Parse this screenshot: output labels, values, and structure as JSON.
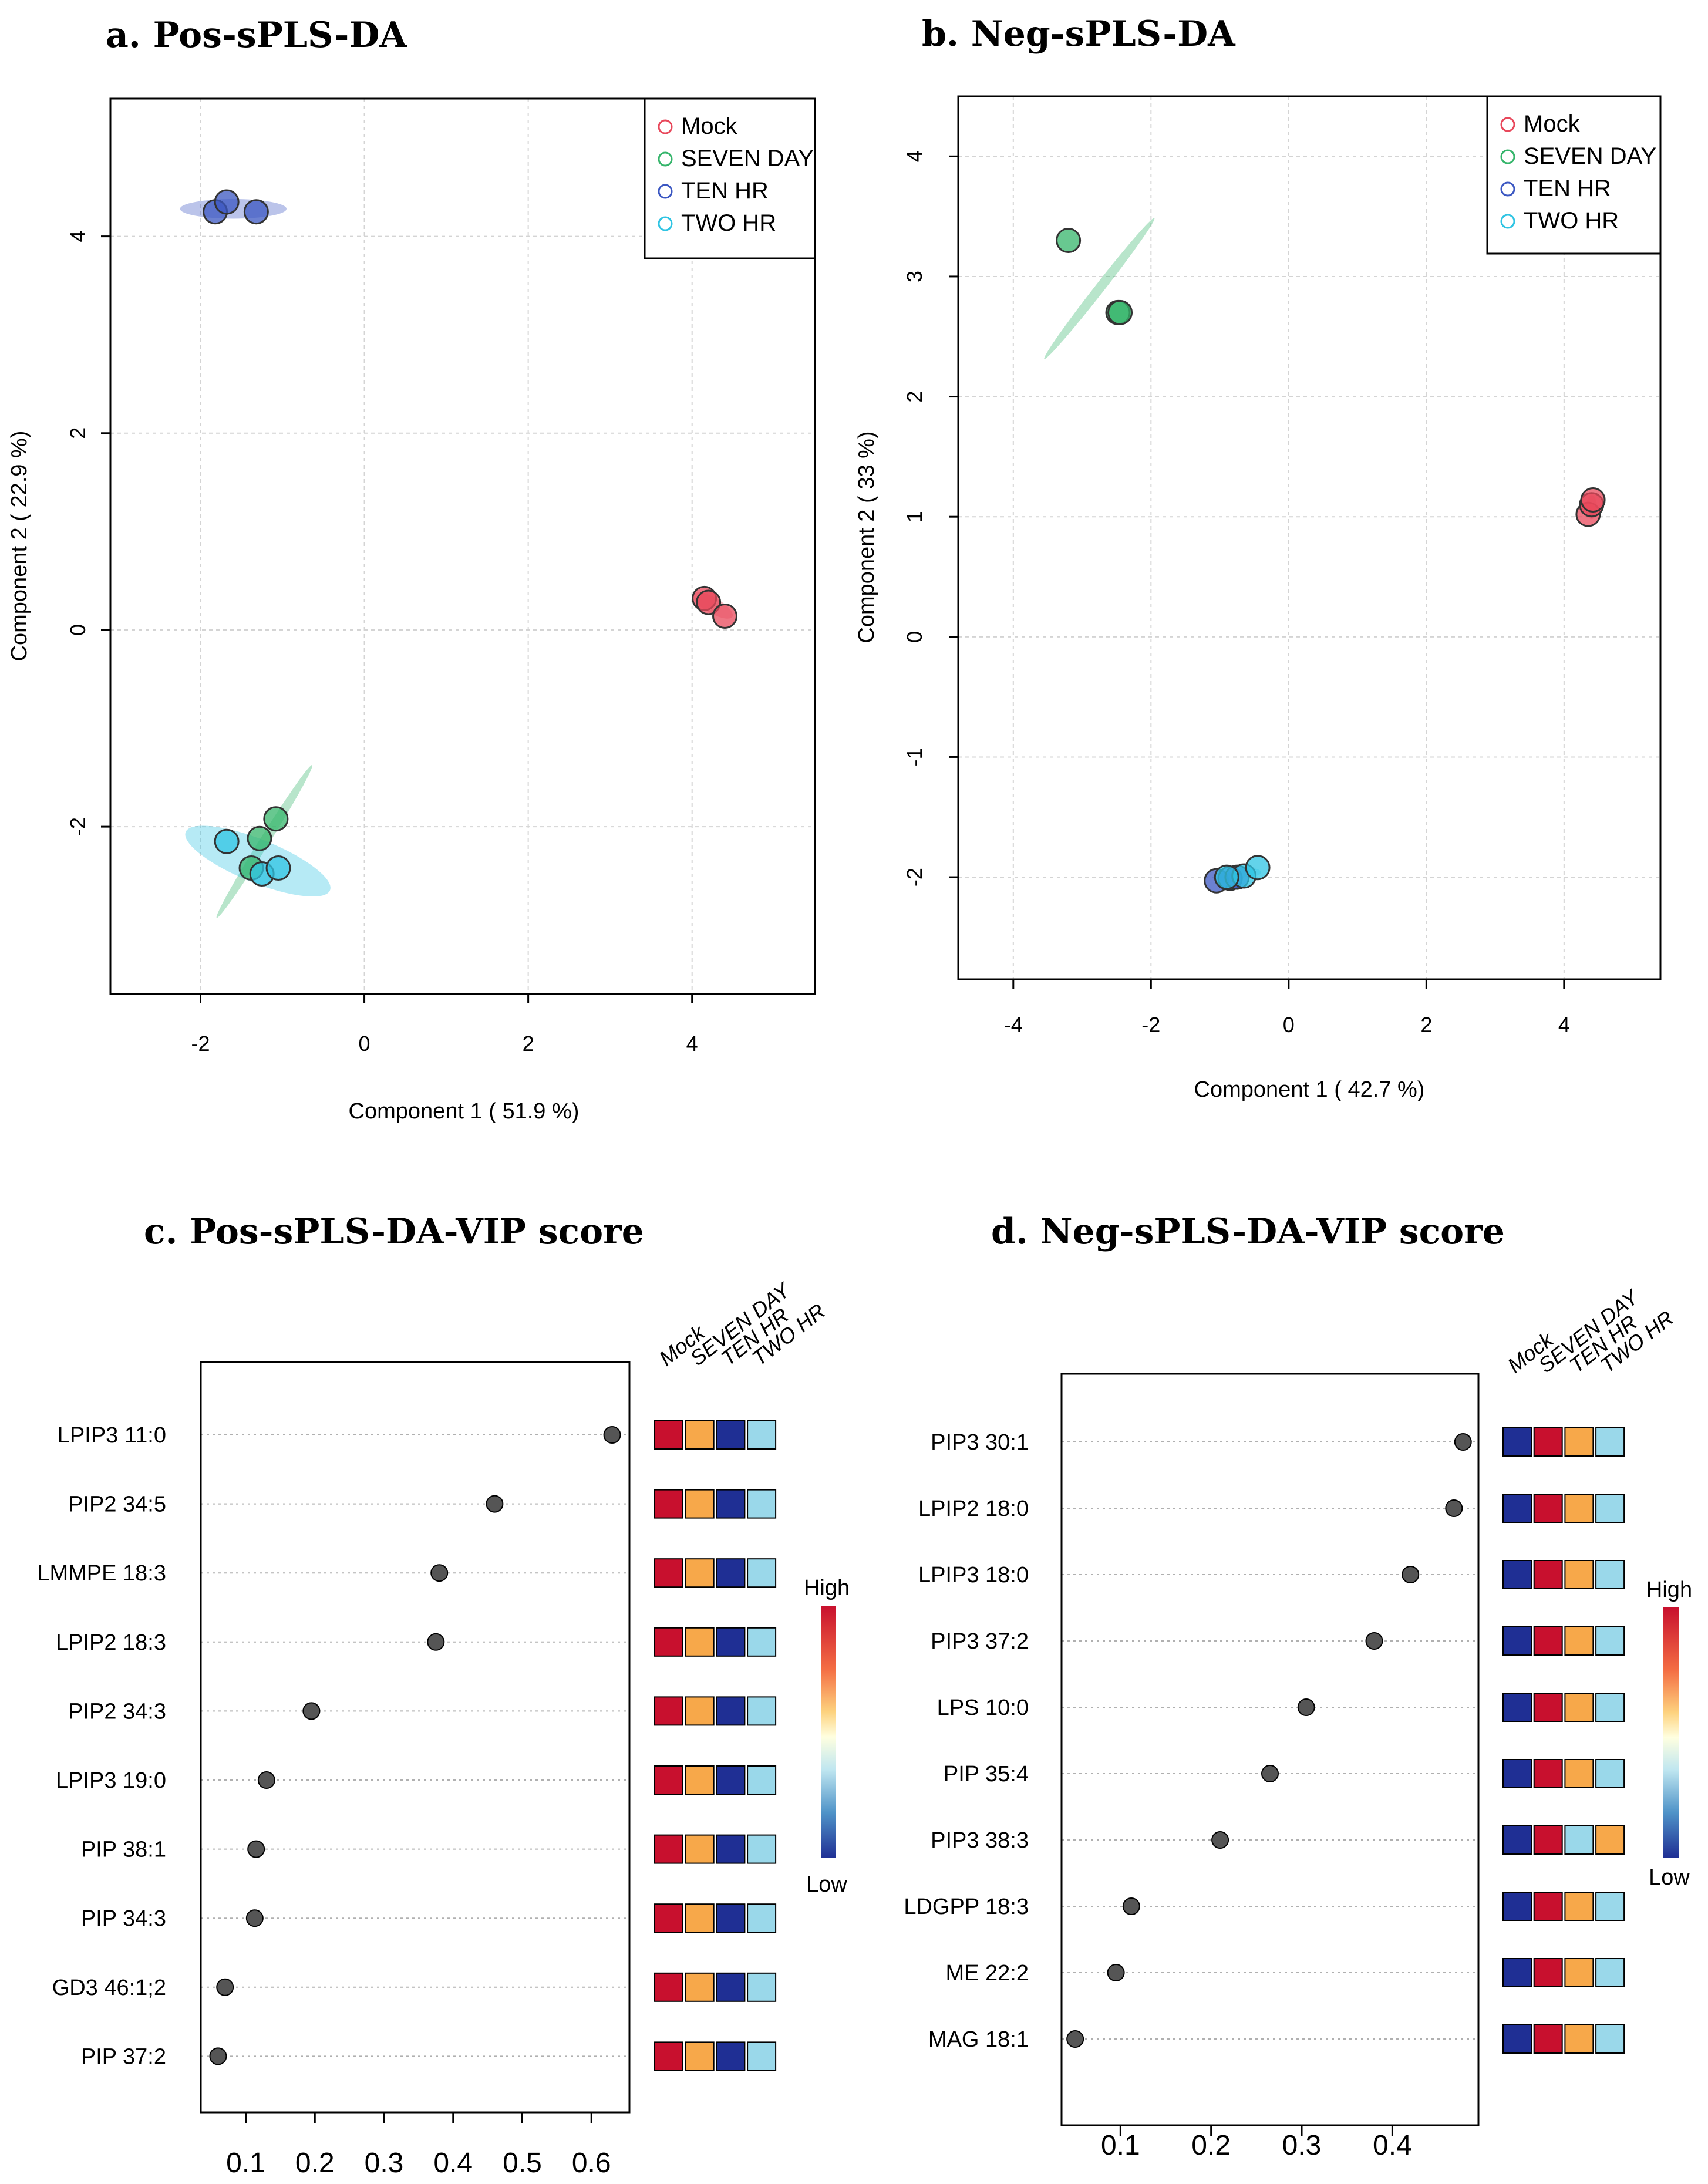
{
  "colors": {
    "mock": "#e8485b",
    "seven_day": "#35b56b",
    "ten_hr": "#3b57c2",
    "two_hr": "#2fc4e3",
    "heat_high": "#c8102e",
    "heat_mid_orange": "#f7a84a",
    "heat_low_dark": "#1f2f94",
    "heat_light_blue": "#9ad8ea",
    "point_fill": "#555555"
  },
  "chart_data": [
    {
      "type": "scatter",
      "title": "a. Pos-sPLS-DA",
      "xlabel": "Component 1 ( 51.9 %)",
      "ylabel": "Component 2 ( 22.9 %)",
      "xlim": [
        -3.1,
        5.5
      ],
      "ylim": [
        -3.7,
        5.4
      ],
      "xticks": [
        -2,
        0,
        2,
        4
      ],
      "yticks": [
        -2,
        0,
        2,
        4
      ],
      "xtick_labels": [
        "-2",
        "0",
        "2",
        "4"
      ],
      "ytick_labels": [
        "-2",
        "0",
        "2",
        "4"
      ],
      "grid": true,
      "legend": {
        "position": "top-right",
        "entries": [
          "Mock",
          "SEVEN DAY",
          "TEN HR",
          "TWO HR"
        ]
      },
      "series": [
        {
          "name": "Mock",
          "color_key": "mock",
          "points": [
            [
              4.15,
              0.32
            ],
            [
              4.2,
              0.28
            ],
            [
              4.4,
              0.14
            ]
          ],
          "ellipse": {
            "cx": 4.25,
            "cy": 0.25,
            "rx": 0.28,
            "ry": 0.08,
            "angle": -30
          }
        },
        {
          "name": "SEVEN DAY",
          "color_key": "seven_day",
          "points": [
            [
              -1.08,
              -1.92
            ],
            [
              -1.28,
              -2.12
            ],
            [
              -1.38,
              -2.42
            ]
          ],
          "ellipse": {
            "cx": -1.22,
            "cy": -2.15,
            "rx": 1.1,
            "ry": 0.05,
            "angle": 58
          }
        },
        {
          "name": "TEN HR",
          "color_key": "ten_hr",
          "points": [
            [
              -1.82,
              4.25
            ],
            [
              -1.68,
              4.35
            ],
            [
              -1.32,
              4.25
            ]
          ],
          "ellipse": {
            "cx": -1.6,
            "cy": 4.28,
            "rx": 0.65,
            "ry": 0.1,
            "angle": 0
          }
        },
        {
          "name": "TWO HR",
          "color_key": "two_hr",
          "points": [
            [
              -1.68,
              -2.15
            ],
            [
              -1.25,
              -2.48
            ],
            [
              -1.05,
              -2.42
            ]
          ],
          "ellipse": {
            "cx": -1.3,
            "cy": -2.35,
            "rx": 0.95,
            "ry": 0.22,
            "angle": -22
          }
        }
      ]
    },
    {
      "type": "scatter",
      "title": "b. Neg-sPLS-DA",
      "xlabel": "Component 1 ( 42.7 %)",
      "ylabel": "Component 2 ( 33 %)",
      "xlim": [
        -4.8,
        5.4
      ],
      "ylim": [
        -2.85,
        4.5
      ],
      "xticks": [
        -4,
        -2,
        0,
        2,
        4
      ],
      "yticks": [
        -2,
        -1,
        0,
        1,
        2,
        3,
        4
      ],
      "xtick_labels": [
        "-4",
        "-2",
        "0",
        "2",
        "4"
      ],
      "ytick_labels": [
        "-2",
        "-1",
        "0",
        "1",
        "2",
        "3",
        "4"
      ],
      "grid": true,
      "legend": {
        "position": "top-right",
        "entries": [
          "Mock",
          "SEVEN DAY",
          "TEN HR",
          "TWO HR"
        ]
      },
      "series": [
        {
          "name": "Mock",
          "color_key": "mock",
          "points": [
            [
              4.35,
              1.02
            ],
            [
              4.4,
              1.1
            ],
            [
              4.42,
              1.14
            ]
          ],
          "ellipse": {
            "cx": 4.4,
            "cy": 1.08,
            "rx": 0.08,
            "ry": 0.1,
            "angle": 0
          }
        },
        {
          "name": "SEVEN DAY",
          "color_key": "seven_day",
          "points": [
            [
              -3.2,
              3.3
            ],
            [
              -2.48,
              2.7
            ],
            [
              -2.45,
              2.7
            ]
          ],
          "ellipse": {
            "cx": -2.75,
            "cy": 2.9,
            "rx": 1.3,
            "ry": 0.04,
            "angle": 52
          }
        },
        {
          "name": "TEN HR",
          "color_key": "ten_hr",
          "points": [
            [
              -1.05,
              -2.03
            ],
            [
              -0.85,
              -2.01
            ],
            [
              -0.75,
              -2.0
            ]
          ],
          "ellipse": {
            "cx": -0.9,
            "cy": -2.0,
            "rx": 0.15,
            "ry": 0.03,
            "angle": 0
          }
        },
        {
          "name": "TWO HR",
          "color_key": "two_hr",
          "points": [
            [
              -0.65,
              -1.99
            ],
            [
              -0.45,
              -1.92
            ],
            [
              -0.9,
              -2.0
            ]
          ],
          "ellipse": {
            "cx": -0.6,
            "cy": -1.96,
            "rx": 0.2,
            "ry": 0.03,
            "angle": 0
          }
        }
      ]
    },
    {
      "type": "scatter",
      "title": "c. Pos-sPLS-DA-VIP score",
      "xlabel": "",
      "ylabel": "",
      "xlim": [
        0.035,
        0.655
      ],
      "xticks": [
        0.1,
        0.2,
        0.3,
        0.4,
        0.5,
        0.6
      ],
      "xtick_labels": [
        "0.1",
        "0.2",
        "0.3",
        "0.4",
        "0.5",
        "0.6"
      ],
      "features": [
        "LPIP3 11:0",
        "PIP2 34:5",
        "LMMPE 18:3",
        "LPIP2 18:3",
        "PIP2 34:3",
        "LPIP3 19:0",
        "PIP 38:1",
        "PIP 34:3",
        "GD3 46:1;2",
        "PIP 37:2"
      ],
      "values": [
        0.63,
        0.46,
        0.38,
        0.375,
        0.195,
        0.13,
        0.115,
        0.113,
        0.07,
        0.06
      ],
      "heatmap": {
        "groups": [
          "Mock",
          "SEVEN DAY",
          "TEN HR",
          "TWO HR"
        ],
        "cells": [
          [
            "heat_high",
            "heat_mid_orange",
            "heat_low_dark",
            "heat_light_blue"
          ],
          [
            "heat_high",
            "heat_mid_orange",
            "heat_low_dark",
            "heat_light_blue"
          ],
          [
            "heat_high",
            "heat_mid_orange",
            "heat_low_dark",
            "heat_light_blue"
          ],
          [
            "heat_high",
            "heat_mid_orange",
            "heat_low_dark",
            "heat_light_blue"
          ],
          [
            "heat_high",
            "heat_mid_orange",
            "heat_low_dark",
            "heat_light_blue"
          ],
          [
            "heat_high",
            "heat_mid_orange",
            "heat_low_dark",
            "heat_light_blue"
          ],
          [
            "heat_high",
            "heat_mid_orange",
            "heat_low_dark",
            "heat_light_blue"
          ],
          [
            "heat_high",
            "heat_mid_orange",
            "heat_low_dark",
            "heat_light_blue"
          ],
          [
            "heat_high",
            "heat_mid_orange",
            "heat_low_dark",
            "heat_light_blue"
          ],
          [
            "heat_high",
            "heat_mid_orange",
            "heat_low_dark",
            "heat_light_blue"
          ]
        ],
        "scale_high": "High",
        "scale_low": "Low"
      }
    },
    {
      "type": "scatter",
      "title": "d. Neg-sPLS-DA-VIP score",
      "xlabel": "",
      "ylabel": "",
      "xlim": [
        0.035,
        0.495
      ],
      "xticks": [
        0.1,
        0.2,
        0.3,
        0.4
      ],
      "xtick_labels": [
        "0.1",
        "0.2",
        "0.3",
        "0.4"
      ],
      "features": [
        "PIP3 30:1",
        "LPIP2 18:0",
        "LPIP3 18:0",
        "PIP3 37:2",
        "LPS 10:0",
        "PIP 35:4",
        "PIP3 38:3",
        "LDGPP 18:3",
        "ME 22:2",
        "MAG 18:1"
      ],
      "values": [
        0.478,
        0.468,
        0.42,
        0.38,
        0.305,
        0.265,
        0.21,
        0.112,
        0.095,
        0.05
      ],
      "heatmap": {
        "groups": [
          "Mock",
          "SEVEN DAY",
          "TEN HR",
          "TWO HR"
        ],
        "cells": [
          [
            "heat_low_dark",
            "heat_high",
            "heat_mid_orange",
            "heat_light_blue"
          ],
          [
            "heat_low_dark",
            "heat_high",
            "heat_mid_orange",
            "heat_light_blue"
          ],
          [
            "heat_low_dark",
            "heat_high",
            "heat_mid_orange",
            "heat_light_blue"
          ],
          [
            "heat_low_dark",
            "heat_high",
            "heat_mid_orange",
            "heat_light_blue"
          ],
          [
            "heat_low_dark",
            "heat_high",
            "heat_mid_orange",
            "heat_light_blue"
          ],
          [
            "heat_low_dark",
            "heat_high",
            "heat_mid_orange",
            "heat_light_blue"
          ],
          [
            "heat_low_dark",
            "heat_high",
            "heat_light_blue",
            "heat_mid_orange"
          ],
          [
            "heat_low_dark",
            "heat_high",
            "heat_mid_orange",
            "heat_light_blue"
          ],
          [
            "heat_low_dark",
            "heat_high",
            "heat_mid_orange",
            "heat_light_blue"
          ],
          [
            "heat_low_dark",
            "heat_high",
            "heat_mid_orange",
            "heat_light_blue"
          ]
        ],
        "scale_high": "High",
        "scale_low": "Low"
      }
    }
  ]
}
